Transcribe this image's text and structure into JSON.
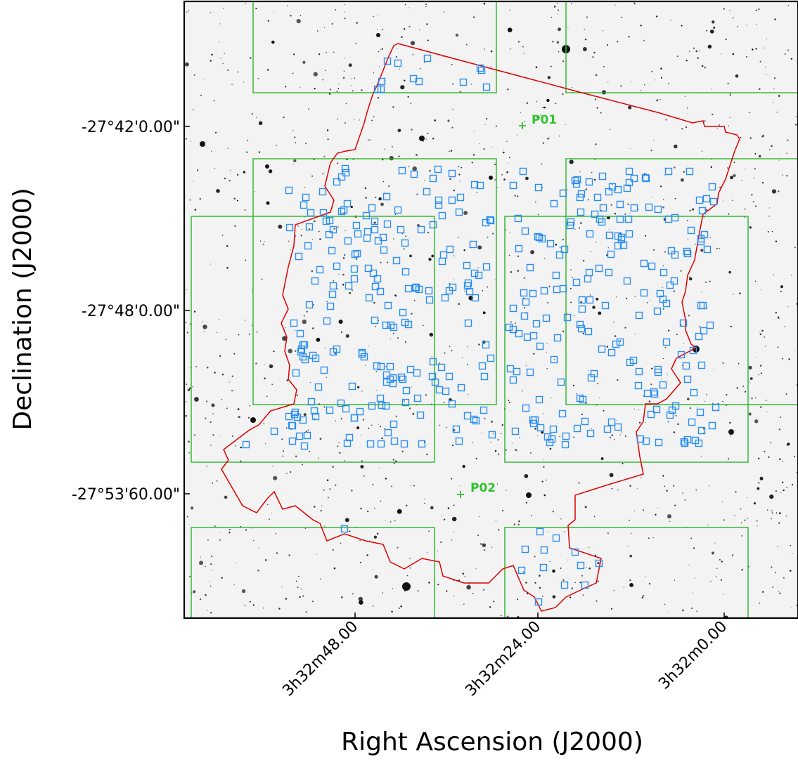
{
  "axes": {
    "xlabel": "Right Ascension (J2000)",
    "ylabel": "Declination (J2000)",
    "x_ticks": [
      "3h32m48.00",
      "3h32m24.00",
      "3h32m0.00"
    ],
    "y_ticks": [
      "-27°42'0.00\"",
      "-27°48'0.00\"",
      "-27°53'60.00\""
    ]
  },
  "pointings": [
    {
      "label": "P01"
    },
    {
      "label": "P02"
    }
  ],
  "colors": {
    "footprint": "#e00000",
    "fov": "#33bb33",
    "sources": "#2a8ef0",
    "pointing": "#2fc42f",
    "background": "#f3f3f3"
  }
}
